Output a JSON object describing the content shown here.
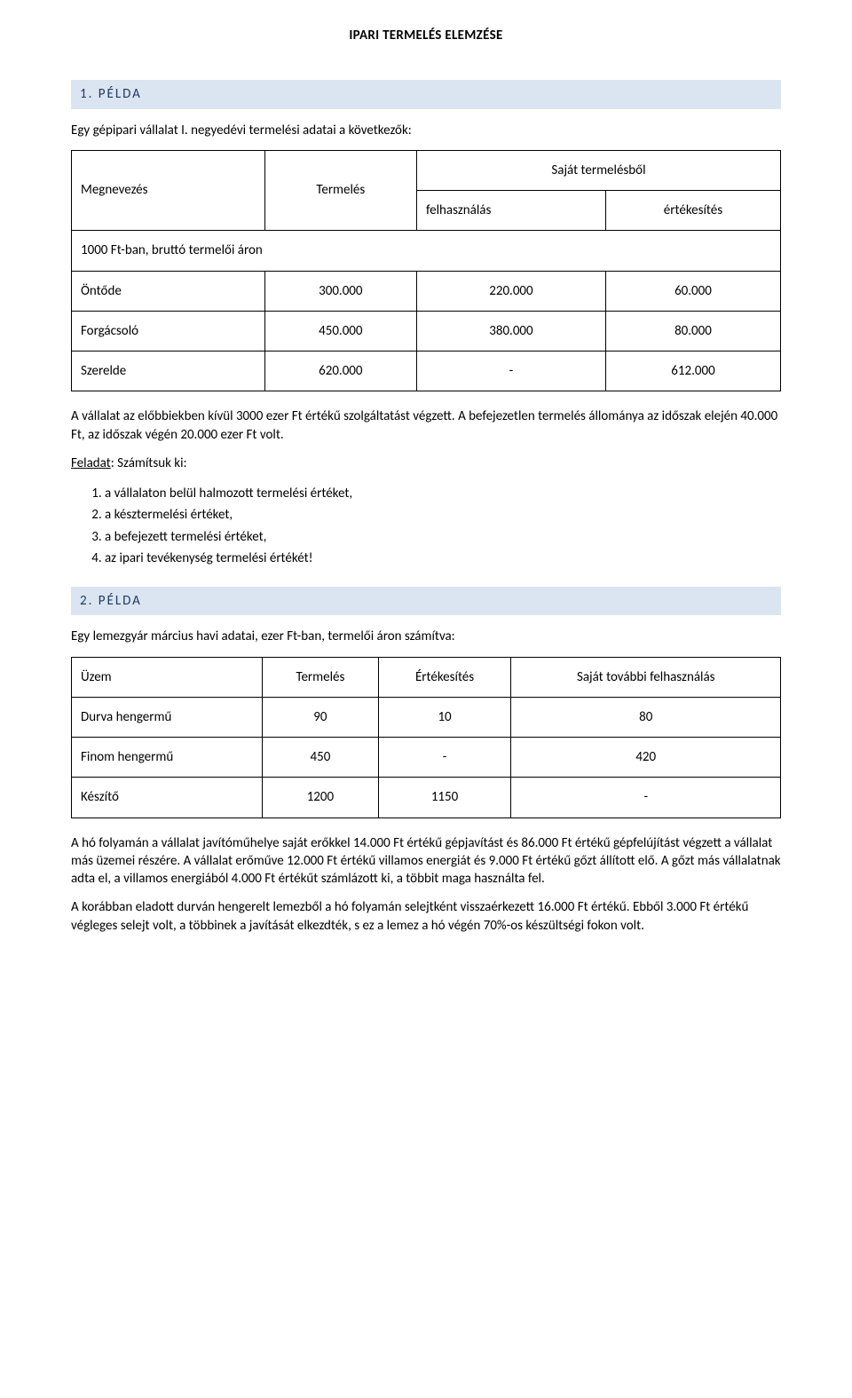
{
  "title": "IPARI TERMELÉS ELEMZÉSE",
  "ex1": {
    "heading": "1. PÉLDA",
    "intro": "Egy gépipari vállalat I. negyedévi termelési adatai a következők:",
    "col_megnevezes": "Megnevezés",
    "col_termeles": "Termelés",
    "col_sajat": "Saját termelésből",
    "col_felhasznalas": "felhasználás",
    "col_ertekesites": "értékesítés",
    "row_unit": "1000 Ft-ban, bruttó termelői áron",
    "rows": [
      {
        "name": "Öntőde",
        "v1": "300.000",
        "v2": "220.000",
        "v3": "60.000"
      },
      {
        "name": "Forgácsoló",
        "v1": "450.000",
        "v2": "380.000",
        "v3": "80.000"
      },
      {
        "name": "Szerelde",
        "v1": "620.000",
        "v2": "-",
        "v3": "612.000"
      }
    ],
    "after": "A vállalat az előbbiekben kívül 3000 ezer Ft értékű szolgáltatást végzett. A befejezetlen termelés állománya az időszak elején 40.000 Ft, az időszak végén 20.000 ezer Ft volt.",
    "task_label_underline": "Feladat",
    "task_label_rest": ": Számítsuk ki:",
    "tasks": [
      "a vállalaton belül halmozott termelési értéket,",
      "a késztermelési értéket,",
      "a befejezett termelési értéket,",
      "az ipari tevékenység termelési értékét!"
    ]
  },
  "ex2": {
    "heading": "2. PÉLDA",
    "intro": "Egy lemezgyár március havi adatai, ezer Ft-ban, termelői áron számítva:",
    "col_uzem": "Üzem",
    "col_termeles": "Termelés",
    "col_ertekesites": "Értékesítés",
    "col_sajat": "Saját további felhasználás",
    "rows": [
      {
        "name": "Durva hengermű",
        "v1": "90",
        "v2": "10",
        "v3": "80"
      },
      {
        "name": "Finom hengermű",
        "v1": "450",
        "v2": "-",
        "v3": "420"
      },
      {
        "name": "Készítő",
        "v1": "1200",
        "v2": "1150",
        "v3": "-"
      }
    ],
    "p1": "A hó folyamán a vállalat javítóműhelye saját erőkkel 14.000 Ft értékű gépjavítást és 86.000 Ft értékű gépfelújítást végzett a vállalat más üzemei részére. A vállalat erőműve 12.000 Ft értékű villamos energiát és 9.000 Ft értékű gőzt állított elő. A gőzt más vállalatnak adta el, a villamos energiából 4.000 Ft értékűt számlázott ki, a többit maga használta fel.",
    "p2": "A korábban eladott durván hengerelt lemezből a hó folyamán selejtként visszaérkezett 16.000 Ft értékű. Ebből 3.000 Ft értékű végleges selejt volt, a többinek a javítását elkezdték, s ez a lemez a hó végén 70%-os készültségi fokon volt."
  },
  "colors": {
    "heading_bg": "#dbe5f1",
    "heading_text": "#1f3864",
    "text": "#000000",
    "border": "#000000",
    "page_bg": "#ffffff"
  }
}
